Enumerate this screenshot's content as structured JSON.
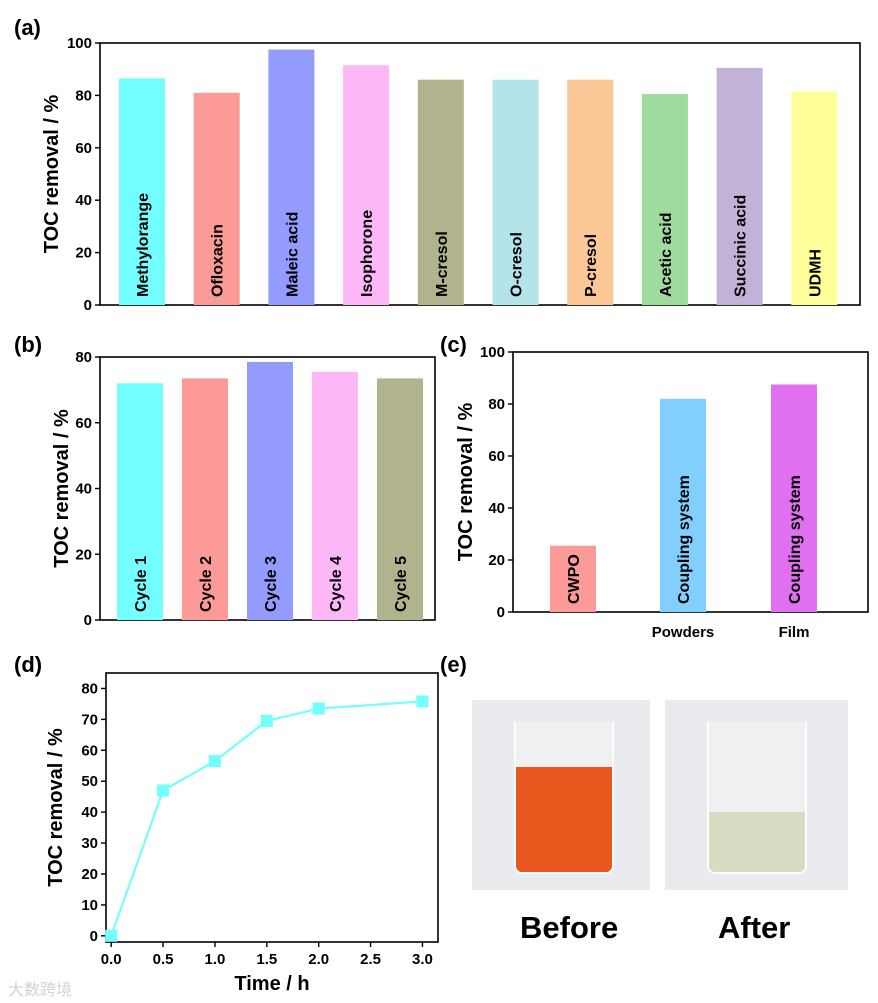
{
  "chart_data": [
    {
      "panel": "(a)",
      "type": "bar",
      "categories": [
        "Methylorange",
        "Ofloxacin",
        "Maleic acid",
        "Isophorone",
        "M-cresol",
        "O-cresol",
        "P-cresol",
        "Acetic acid",
        "Succinic acid",
        "UDMH"
      ],
      "values": [
        86.5,
        81,
        97.5,
        91.5,
        86,
        86,
        86,
        80.5,
        90.5,
        81.5
      ],
      "colors": [
        "#73ffff",
        "#fb9a96",
        "#939bff",
        "#fdb7f7",
        "#b1b38c",
        "#b5e3ea",
        "#fcc797",
        "#9fdb9d",
        "#c3b2d7",
        "#ffff99"
      ],
      "ylabel": "TOC removal / %",
      "ylim": [
        0,
        100
      ],
      "yticks": [
        "0",
        "20",
        "40",
        "60",
        "80",
        "100"
      ]
    },
    {
      "panel": "(b)",
      "type": "bar",
      "categories": [
        "Cycle 1",
        "Cycle 2",
        "Cycle 3",
        "Cycle 4",
        "Cycle 5"
      ],
      "values": [
        72,
        73.5,
        78.5,
        75.5,
        73.5
      ],
      "colors": [
        "#73ffff",
        "#fb9a96",
        "#939bff",
        "#fdb7f7",
        "#b1b38c"
      ],
      "ylabel": "TOC removal / %",
      "ylim": [
        0,
        80
      ],
      "yticks": [
        "0",
        "20",
        "40",
        "60",
        "80"
      ]
    },
    {
      "panel": "(c)",
      "type": "bar",
      "categories": [
        "CWPO",
        "Coupling system",
        "Coupling system"
      ],
      "xticklabels": [
        "",
        "Powders",
        "Film"
      ],
      "values": [
        25.5,
        82,
        87.5
      ],
      "colors": [
        "#fb9a96",
        "#82cffd",
        "#e070ef"
      ],
      "ylabel": "TOC removal / %",
      "ylim": [
        0,
        100
      ],
      "yticks": [
        "0",
        "20",
        "40",
        "60",
        "80",
        "100"
      ]
    },
    {
      "panel": "(d)",
      "type": "line",
      "x": [
        0,
        0.5,
        1.0,
        1.5,
        2.0,
        3.0
      ],
      "y": [
        0,
        47,
        56.5,
        69.5,
        73.5,
        75.8
      ],
      "color": "#73ffff",
      "xlabel": "Time / h",
      "ylabel": "TOC removal / %",
      "xlim": [
        -0.05,
        3.15
      ],
      "ylim": [
        -2,
        85
      ],
      "xticks": [
        "0.0",
        "0.5",
        "1.0",
        "1.5",
        "2.0",
        "2.5",
        "3.0"
      ],
      "yticks": [
        "0",
        "10",
        "20",
        "30",
        "40",
        "50",
        "60",
        "70",
        "80"
      ]
    }
  ],
  "photos": {
    "panel": "(e)",
    "before_label": "Before",
    "after_label": "After",
    "before_liquid_color": "#e8571e",
    "after_liquid_color": "#d8dcc2"
  },
  "watermark": "大数跨境"
}
